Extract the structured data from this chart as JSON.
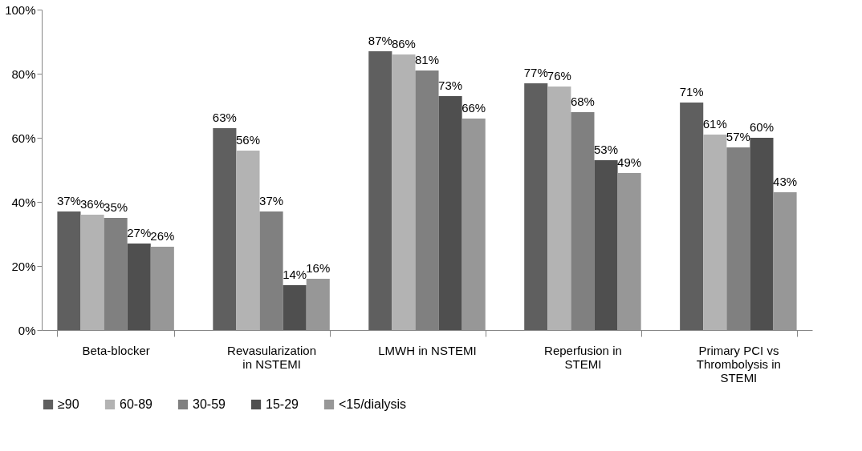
{
  "chart_data": {
    "type": "bar",
    "categories": [
      "Beta-blocker",
      "Revasularization in NSTEMI",
      "LMWH in NSTEMI",
      "Reperfusion in STEMI",
      "Primary PCI vs Thrombolysis in STEMI"
    ],
    "series": [
      {
        "name": "≥90",
        "color": "#5f5f5f",
        "values": [
          37,
          63,
          87,
          77,
          71
        ],
        "value_labels": [
          "37%",
          "63%",
          "87%",
          "77%",
          "71%"
        ]
      },
      {
        "name": "60-89",
        "color": "#b3b3b3",
        "values": [
          36,
          56,
          86,
          76,
          61
        ],
        "value_labels": [
          "36%",
          "56%",
          "86%",
          "76%",
          "61%"
        ]
      },
      {
        "name": "30-59",
        "color": "#808080",
        "values": [
          35,
          37,
          81,
          68,
          57
        ],
        "value_labels": [
          "35%",
          "37%",
          "81%",
          "68%",
          "57%"
        ]
      },
      {
        "name": "15-29",
        "color": "#4f4f4f",
        "values": [
          27,
          14,
          73,
          53,
          60
        ],
        "value_labels": [
          "27%",
          "14%",
          "73%",
          "53%",
          "60%"
        ]
      },
      {
        "name": "<15/dialysis",
        "color": "#979797",
        "values": [
          26,
          16,
          66,
          49,
          43
        ],
        "value_labels": [
          "26%",
          "16%",
          "66%",
          "49%",
          "43%"
        ]
      }
    ],
    "ylim": [
      0,
      100
    ],
    "yticks": [
      {
        "value": 0,
        "label": "0%"
      },
      {
        "value": 20,
        "label": "20%"
      },
      {
        "value": 40,
        "label": "40%"
      },
      {
        "value": 60,
        "label": "60%"
      },
      {
        "value": 80,
        "label": "80%"
      },
      {
        "value": 100,
        "label": "100%"
      }
    ],
    "grid": false,
    "legend": "bottom"
  }
}
